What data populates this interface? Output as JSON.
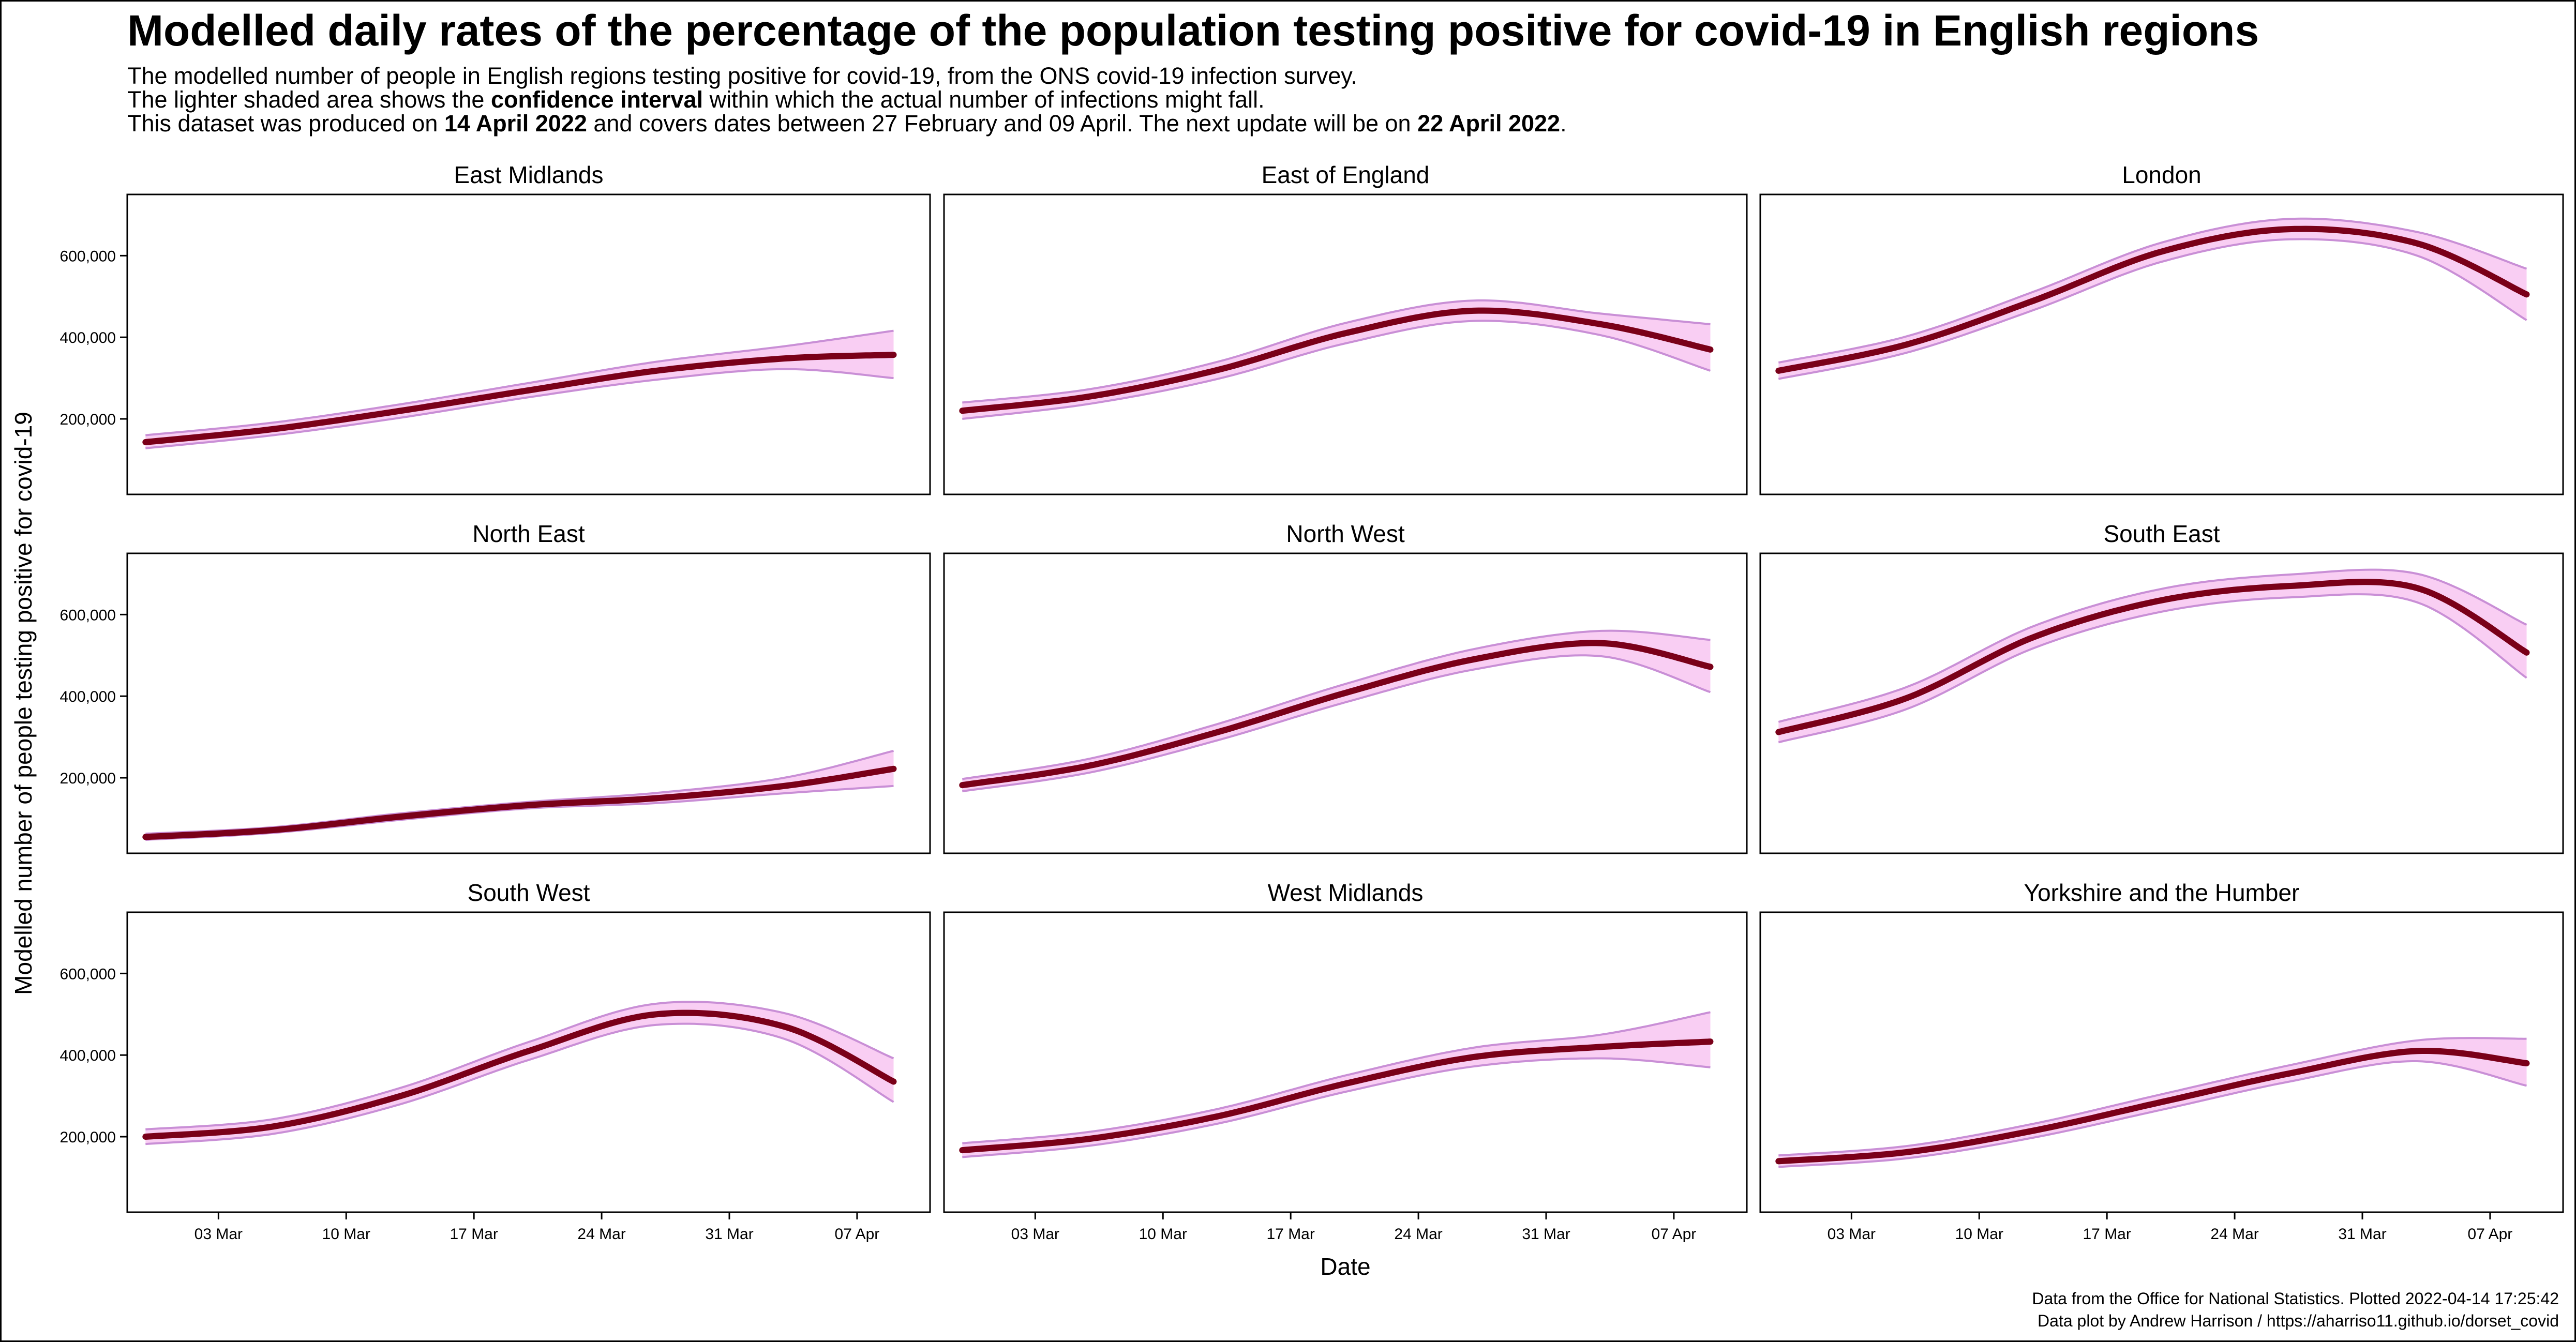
{
  "header": {
    "title": "Modelled daily rates of the percentage of the population testing positive for covid-19 in English regions",
    "line1": "The modelled number of people in English regions testing positive for covid-19, from the ONS covid-19 infection survey.",
    "line2_pre": "The lighter shaded area shows the ",
    "line2_bold": "confidence interval",
    "line2_post": " within which the actual number of infections might fall.",
    "line3_pre": "This dataset was produced on ",
    "line3_bold1": "14 April 2022",
    "line3_mid": " and covers dates between 27 February and 09 April. The next update will be on ",
    "line3_bold2": "22 April 2022",
    "line3_post": "."
  },
  "footer": {
    "credit1": "Data from the Office for National Statistics. Plotted 2022-04-14 17:25:42",
    "credit2": "Data plot by Andrew Harrison / https://aharriso11.github.io/dorset_covid"
  },
  "colors": {
    "line": "#7a0019",
    "ribbon_fill": "#f9cef3",
    "ribbon_edge": "#c98fd6"
  },
  "chart_data": {
    "type": "line",
    "layout": "facet-grid-3x3",
    "xlabel": "Date",
    "ylabel": "Modelled number of people testing positive for covid-19",
    "x": [
      "2022-02-27",
      "2022-03-06",
      "2022-03-13",
      "2022-03-20",
      "2022-03-27",
      "2022-04-03",
      "2022-04-09"
    ],
    "xlim": [
      "2022-02-26",
      "2022-04-11"
    ],
    "xticks": [
      "2022-03-03",
      "2022-03-10",
      "2022-03-17",
      "2022-03-24",
      "2022-03-31",
      "2022-04-07"
    ],
    "xtick_labels": [
      "03 Mar",
      "10 Mar",
      "17 Mar",
      "24 Mar",
      "31 Mar",
      "07 Apr"
    ],
    "ylim": [
      15000,
      750000
    ],
    "yticks": [
      200000,
      400000,
      600000
    ],
    "ytick_labels": [
      "200,000",
      "400,000",
      "600,000"
    ],
    "grid": false,
    "legend": "none",
    "panels": [
      {
        "name": "East Midlands",
        "values": [
          143000,
          175000,
          220000,
          270000,
          318000,
          348000,
          357000
        ],
        "lower": [
          128000,
          160000,
          203000,
          253000,
          296000,
          322000,
          300000
        ],
        "upper": [
          160000,
          191000,
          236000,
          288000,
          340000,
          378000,
          416000
        ]
      },
      {
        "name": "East of England",
        "values": [
          220000,
          255000,
          320000,
          410000,
          465000,
          432000,
          370000
        ],
        "lower": [
          200000,
          237000,
          298000,
          385000,
          440000,
          405000,
          318000
        ],
        "upper": [
          240000,
          273000,
          340000,
          435000,
          490000,
          458000,
          432000
        ]
      },
      {
        "name": "London",
        "values": [
          318000,
          382000,
          490000,
          610000,
          665000,
          630000,
          505000
        ],
        "lower": [
          298000,
          362000,
          467000,
          585000,
          640000,
          600000,
          442000
        ],
        "upper": [
          338000,
          402000,
          512000,
          632000,
          690000,
          658000,
          568000
        ]
      },
      {
        "name": "North East",
        "values": [
          55000,
          72000,
          105000,
          133000,
          150000,
          180000,
          222000
        ],
        "lower": [
          48000,
          65000,
          97000,
          125000,
          138000,
          162000,
          180000
        ],
        "upper": [
          63000,
          79000,
          113000,
          141000,
          163000,
          200000,
          266000
        ]
      },
      {
        "name": "North West",
        "values": [
          182000,
          230000,
          312000,
          408000,
          490000,
          530000,
          472000
        ],
        "lower": [
          167000,
          213000,
          292000,
          385000,
          465000,
          498000,
          410000
        ],
        "upper": [
          197000,
          247000,
          332000,
          430000,
          515000,
          560000,
          538000
        ]
      },
      {
        "name": "South East",
        "values": [
          312000,
          395000,
          545000,
          635000,
          670000,
          665000,
          507000
        ],
        "lower": [
          287000,
          368000,
          518000,
          607000,
          642000,
          630000,
          445000
        ],
        "upper": [
          337000,
          422000,
          572000,
          663000,
          698000,
          700000,
          575000
        ]
      },
      {
        "name": "South West",
        "values": [
          200000,
          225000,
          300000,
          410000,
          500000,
          470000,
          335000
        ],
        "lower": [
          182000,
          207000,
          280000,
          388000,
          474000,
          440000,
          285000
        ],
        "upper": [
          218000,
          243000,
          320000,
          432000,
          526000,
          503000,
          392000
        ]
      },
      {
        "name": "West Midlands",
        "values": [
          167000,
          195000,
          250000,
          330000,
          395000,
          420000,
          433000
        ],
        "lower": [
          150000,
          178000,
          232000,
          310000,
          372000,
          392000,
          370000
        ],
        "upper": [
          184000,
          212000,
          268000,
          350000,
          418000,
          450000,
          505000
        ]
      },
      {
        "name": "Yorkshire and the Humber",
        "values": [
          140000,
          162000,
          215000,
          285000,
          355000,
          410000,
          380000
        ],
        "lower": [
          126000,
          147000,
          198000,
          266000,
          335000,
          385000,
          325000
        ],
        "upper": [
          154000,
          177000,
          232000,
          304000,
          375000,
          436000,
          440000
        ]
      }
    ]
  }
}
